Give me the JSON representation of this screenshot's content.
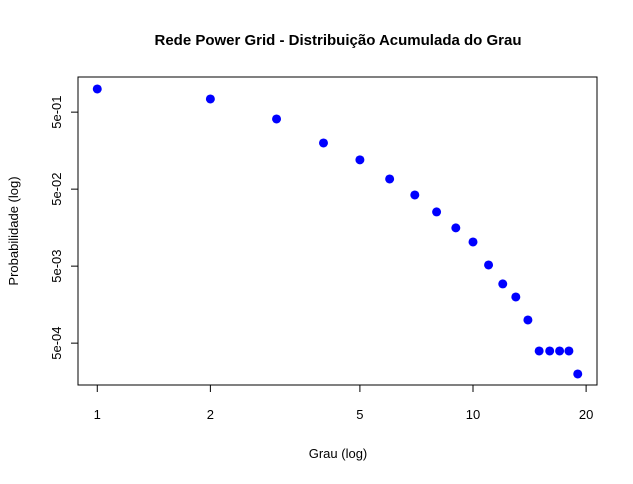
{
  "chart_data": {
    "type": "scatter",
    "title": "Rede Power Grid - Distribuição Acumulada do Grau",
    "x_label": "Grau (log)",
    "y_label": "Probabilidade (log)",
    "log_x": true,
    "log_y": true,
    "color": "#0000ff",
    "x": [
      1,
      2,
      3,
      4,
      5,
      6,
      7,
      8,
      9,
      10,
      11,
      12,
      13,
      14,
      15,
      16,
      17,
      18,
      19
    ],
    "values": [
      1,
      0.741,
      0.408,
      0.199,
      0.12,
      0.0678,
      0.042,
      0.0253,
      0.0157,
      0.0103,
      0.00518,
      0.00294,
      0.00199,
      0.001,
      0.000396,
      0.000396,
      0.000396,
      0.000396,
      0.000199
    ],
    "xlim": [
      0.8886,
      21.38
    ],
    "ylim": [
      0.000143,
      1.43
    ],
    "xticks": [
      1,
      2,
      5,
      10,
      20
    ],
    "yticks": [
      {
        "value": 0.5,
        "label": "5e-01"
      },
      {
        "value": 0.05,
        "label": "5e-02"
      },
      {
        "value": 0.005,
        "label": "5e-03"
      },
      {
        "value": 0.0005,
        "label": "5e-04"
      }
    ]
  }
}
